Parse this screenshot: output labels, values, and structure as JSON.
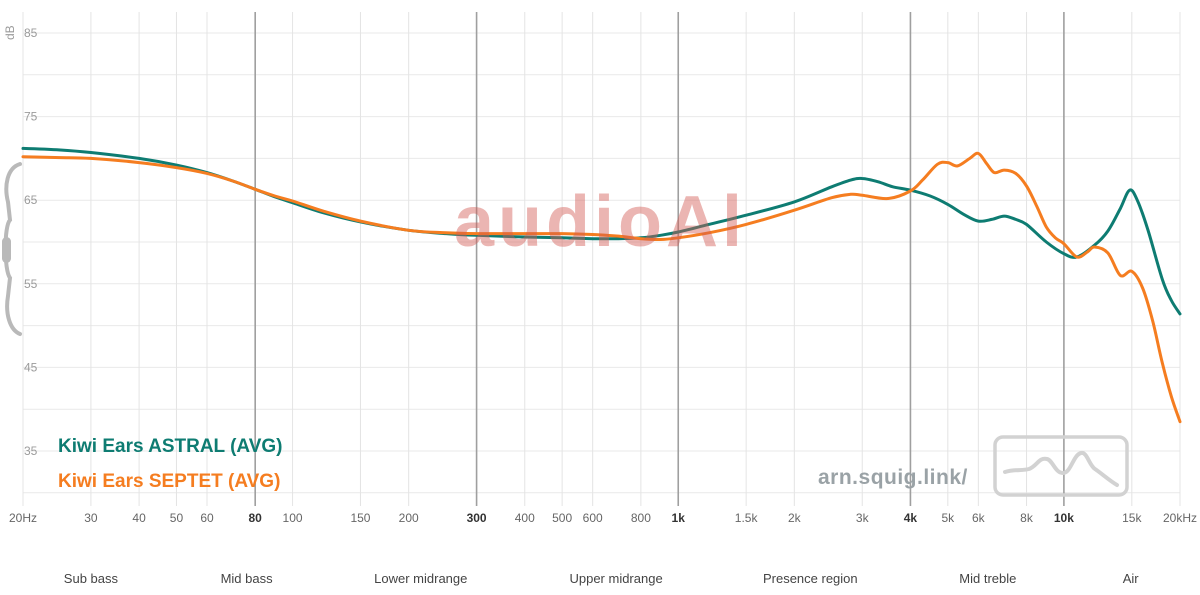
{
  "watermark": "audioAl",
  "site_label": "arn.squig.link/",
  "chart_data": {
    "type": "line",
    "grid": true,
    "legend_position": "bottom-left",
    "x_axis": {
      "scale": "log",
      "min_hz": 20,
      "max_hz": 20000,
      "ticks": [
        {
          "hz": 20,
          "label": "20Hz",
          "bold": false
        },
        {
          "hz": 30,
          "label": "30",
          "bold": false
        },
        {
          "hz": 40,
          "label": "40",
          "bold": false
        },
        {
          "hz": 50,
          "label": "50",
          "bold": false
        },
        {
          "hz": 60,
          "label": "60",
          "bold": false
        },
        {
          "hz": 80,
          "label": "80",
          "bold": true
        },
        {
          "hz": 100,
          "label": "100",
          "bold": false
        },
        {
          "hz": 150,
          "label": "150",
          "bold": false
        },
        {
          "hz": 200,
          "label": "200",
          "bold": false
        },
        {
          "hz": 300,
          "label": "300",
          "bold": true
        },
        {
          "hz": 400,
          "label": "400",
          "bold": false
        },
        {
          "hz": 500,
          "label": "500",
          "bold": false
        },
        {
          "hz": 600,
          "label": "600",
          "bold": false
        },
        {
          "hz": 800,
          "label": "800",
          "bold": false
        },
        {
          "hz": 1000,
          "label": "1k",
          "bold": true
        },
        {
          "hz": 1500,
          "label": "1.5k",
          "bold": false
        },
        {
          "hz": 2000,
          "label": "2k",
          "bold": false
        },
        {
          "hz": 3000,
          "label": "3k",
          "bold": false
        },
        {
          "hz": 4000,
          "label": "4k",
          "bold": true
        },
        {
          "hz": 5000,
          "label": "5k",
          "bold": false
        },
        {
          "hz": 6000,
          "label": "6k",
          "bold": false
        },
        {
          "hz": 8000,
          "label": "8k",
          "bold": false
        },
        {
          "hz": 10000,
          "label": "10k",
          "bold": true
        },
        {
          "hz": 15000,
          "label": "15k",
          "bold": false
        },
        {
          "hz": 20000,
          "label": "20kHz",
          "bold": false
        }
      ]
    },
    "y_axis": {
      "unit": "dB",
      "min": 30,
      "max": 87,
      "tick_labels": [
        85,
        75,
        65,
        55,
        45,
        35
      ],
      "gridline_step_db": 5
    },
    "regions": [
      {
        "label": "Sub bass",
        "center_hz": 30
      },
      {
        "label": "Mid bass",
        "center_hz": 76
      },
      {
        "label": "Lower midrange",
        "center_hz": 215
      },
      {
        "label": "Upper midrange",
        "center_hz": 690
      },
      {
        "label": "Presence region",
        "center_hz": 2200
      },
      {
        "label": "Mid treble",
        "center_hz": 6350
      },
      {
        "label": "Air",
        "center_hz": 14900
      }
    ],
    "series": [
      {
        "name": "Kiwi Ears ASTRAL (AVG)",
        "color": "#0e7c72",
        "points": [
          [
            20,
            71.2
          ],
          [
            25,
            71.0
          ],
          [
            30,
            70.7
          ],
          [
            40,
            70.0
          ],
          [
            50,
            69.2
          ],
          [
            60,
            68.3
          ],
          [
            70,
            67.3
          ],
          [
            80,
            66.3
          ],
          [
            90,
            65.4
          ],
          [
            100,
            64.7
          ],
          [
            120,
            63.5
          ],
          [
            150,
            62.4
          ],
          [
            200,
            61.4
          ],
          [
            250,
            61.0
          ],
          [
            300,
            60.8
          ],
          [
            400,
            60.6
          ],
          [
            500,
            60.5
          ],
          [
            600,
            60.4
          ],
          [
            700,
            60.4
          ],
          [
            800,
            60.5
          ],
          [
            900,
            60.8
          ],
          [
            1000,
            61.2
          ],
          [
            1200,
            62.1
          ],
          [
            1500,
            63.2
          ],
          [
            2000,
            64.8
          ],
          [
            2500,
            66.6
          ],
          [
            2800,
            67.4
          ],
          [
            3000,
            67.6
          ],
          [
            3300,
            67.2
          ],
          [
            3600,
            66.6
          ],
          [
            4000,
            66.2
          ],
          [
            4500,
            65.5
          ],
          [
            5000,
            64.5
          ],
          [
            5500,
            63.3
          ],
          [
            6000,
            62.5
          ],
          [
            6500,
            62.7
          ],
          [
            7000,
            63.1
          ],
          [
            7500,
            62.7
          ],
          [
            8000,
            62.1
          ],
          [
            9000,
            60.0
          ],
          [
            10000,
            58.6
          ],
          [
            10800,
            58.2
          ],
          [
            12000,
            59.6
          ],
          [
            13000,
            61.3
          ],
          [
            14000,
            64.0
          ],
          [
            14800,
            66.2
          ],
          [
            15500,
            65.0
          ],
          [
            16500,
            61.5
          ],
          [
            18000,
            55.5
          ],
          [
            19000,
            53.0
          ],
          [
            20000,
            51.4
          ]
        ]
      },
      {
        "name": "Kiwi Ears SEPTET (AVG)",
        "color": "#f57d20",
        "points": [
          [
            20,
            70.2
          ],
          [
            25,
            70.1
          ],
          [
            30,
            70.0
          ],
          [
            40,
            69.5
          ],
          [
            50,
            68.9
          ],
          [
            60,
            68.2
          ],
          [
            70,
            67.3
          ],
          [
            80,
            66.3
          ],
          [
            90,
            65.5
          ],
          [
            100,
            64.9
          ],
          [
            120,
            63.7
          ],
          [
            150,
            62.5
          ],
          [
            200,
            61.4
          ],
          [
            250,
            61.1
          ],
          [
            300,
            61.0
          ],
          [
            400,
            61.0
          ],
          [
            500,
            61.0
          ],
          [
            600,
            60.9
          ],
          [
            700,
            60.7
          ],
          [
            800,
            60.4
          ],
          [
            900,
            60.3
          ],
          [
            1000,
            60.5
          ],
          [
            1200,
            61.1
          ],
          [
            1500,
            62.1
          ],
          [
            2000,
            63.8
          ],
          [
            2500,
            65.3
          ],
          [
            2800,
            65.7
          ],
          [
            3000,
            65.6
          ],
          [
            3500,
            65.2
          ],
          [
            4000,
            66.1
          ],
          [
            4300,
            67.4
          ],
          [
            4700,
            69.3
          ],
          [
            5000,
            69.5
          ],
          [
            5300,
            69.1
          ],
          [
            5700,
            70.0
          ],
          [
            6000,
            70.6
          ],
          [
            6300,
            69.4
          ],
          [
            6600,
            68.3
          ],
          [
            7000,
            68.6
          ],
          [
            7500,
            68.2
          ],
          [
            8000,
            66.7
          ],
          [
            8500,
            64.3
          ],
          [
            9000,
            61.8
          ],
          [
            9500,
            60.5
          ],
          [
            10000,
            59.8
          ],
          [
            10800,
            58.2
          ],
          [
            11500,
            58.8
          ],
          [
            12000,
            59.4
          ],
          [
            13000,
            58.7
          ],
          [
            14000,
            56.0
          ],
          [
            15000,
            56.5
          ],
          [
            16000,
            54.5
          ],
          [
            17000,
            50.5
          ],
          [
            18000,
            45.5
          ],
          [
            19000,
            41.5
          ],
          [
            20000,
            38.5
          ]
        ]
      }
    ]
  }
}
